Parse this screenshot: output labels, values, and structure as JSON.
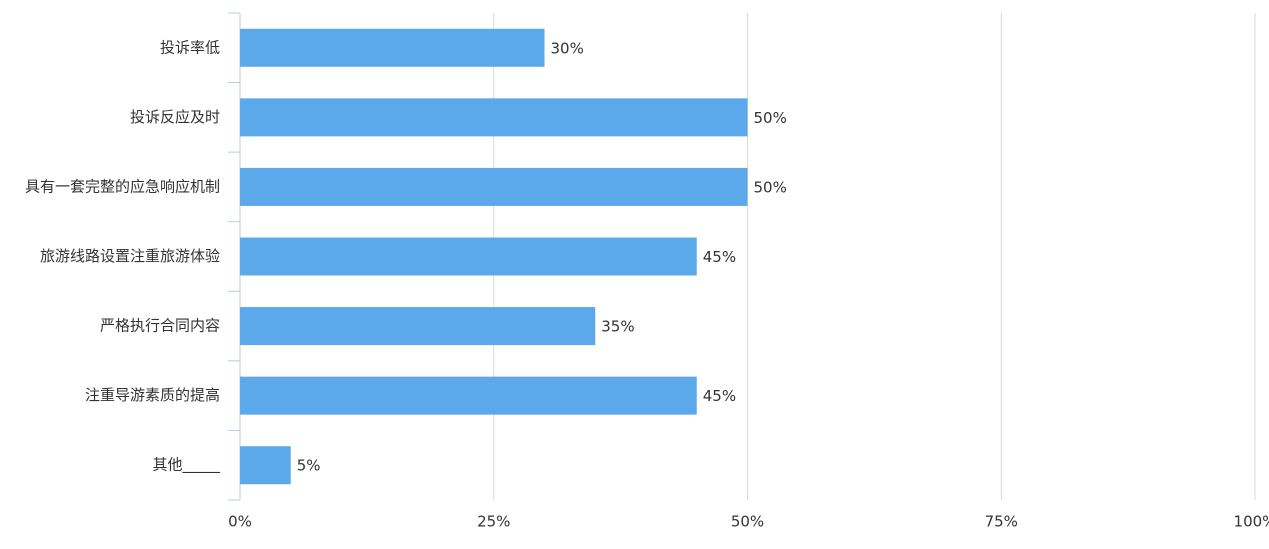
{
  "chart_data": {
    "type": "hbar",
    "categories": [
      "投诉率低",
      "投诉反应及时",
      "具有一套完整的应急响应机制",
      "旅游线路设置注重旅游体验",
      "严格执行合同内容",
      "注重导游素质的提高",
      "其他_____"
    ],
    "values": [
      30,
      50,
      50,
      45,
      35,
      45,
      5
    ],
    "value_labels": [
      "30%",
      "50%",
      "50%",
      "45%",
      "35%",
      "45%",
      "5%"
    ],
    "color": "#5ba8eb",
    "xlim": [
      0,
      100
    ],
    "xticks": [
      {
        "value": 0,
        "label": "0%"
      },
      {
        "value": 25,
        "label": "25%"
      },
      {
        "value": 50,
        "label": "50%"
      },
      {
        "value": 75,
        "label": "75%"
      },
      {
        "value": 100,
        "label": "100%"
      }
    ],
    "grid": true
  }
}
